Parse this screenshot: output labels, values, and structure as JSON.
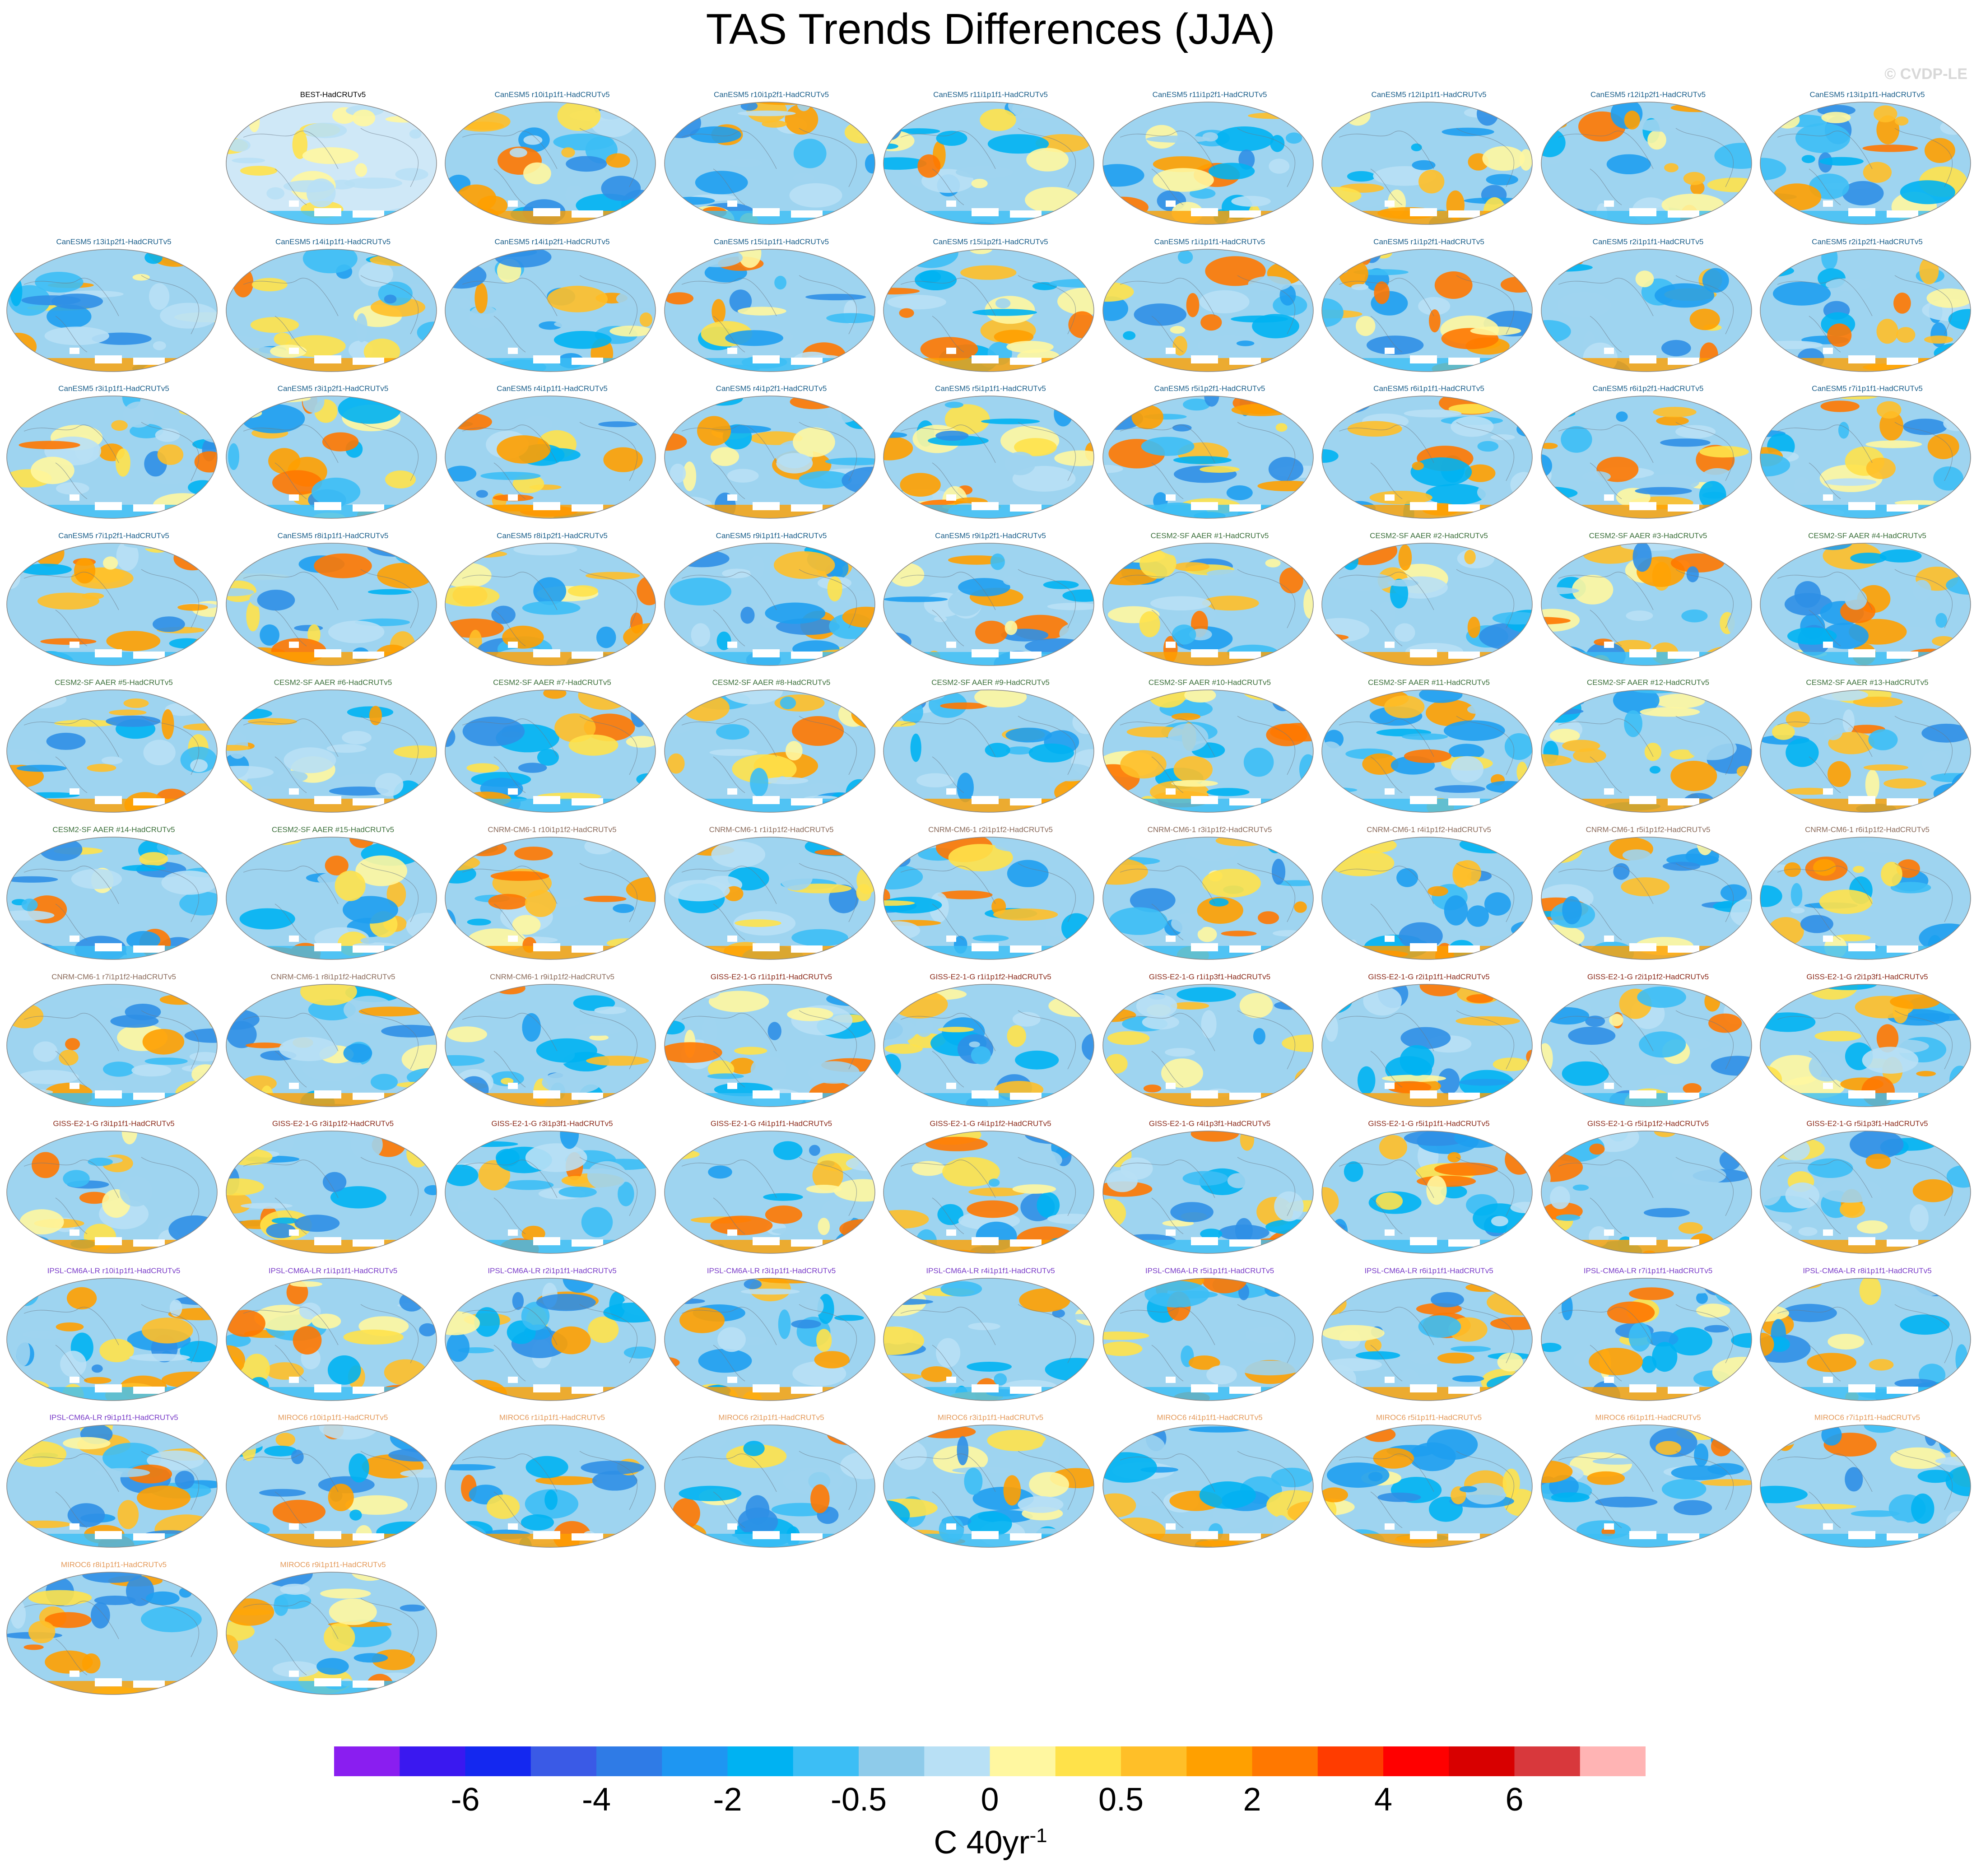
{
  "title": "TAS Trends Differences (JJA)",
  "watermark": "© CVDP-LE",
  "colors": {
    "reference_title": "#000000",
    "CanESM5": "#1a5e8a",
    "CESM2-SF AAER": "#3b6f3a",
    "CNRM-CM6-1": "#8a6a5a",
    "GISS-E2-1-G": "#8b2a1a",
    "IPSL-CM6A-LR": "#7a3cc8",
    "MIROC6": "#e49a5a"
  },
  "panels": [
    {
      "label": "BEST-HadCRUTv5",
      "model": "reference"
    },
    {
      "label": "CanESM5 r10i1p1f1-HadCRUTv5",
      "model": "CanESM5"
    },
    {
      "label": "CanESM5 r10i1p2f1-HadCRUTv5",
      "model": "CanESM5"
    },
    {
      "label": "CanESM5 r11i1p1f1-HadCRUTv5",
      "model": "CanESM5"
    },
    {
      "label": "CanESM5 r11i1p2f1-HadCRUTv5",
      "model": "CanESM5"
    },
    {
      "label": "CanESM5 r12i1p1f1-HadCRUTv5",
      "model": "CanESM5"
    },
    {
      "label": "CanESM5 r12i1p2f1-HadCRUTv5",
      "model": "CanESM5"
    },
    {
      "label": "CanESM5 r13i1p1f1-HadCRUTv5",
      "model": "CanESM5"
    },
    {
      "label": "CanESM5 r13i1p2f1-HadCRUTv5",
      "model": "CanESM5"
    },
    {
      "label": "CanESM5 r14i1p1f1-HadCRUTv5",
      "model": "CanESM5"
    },
    {
      "label": "CanESM5 r14i1p2f1-HadCRUTv5",
      "model": "CanESM5"
    },
    {
      "label": "CanESM5 r15i1p1f1-HadCRUTv5",
      "model": "CanESM5"
    },
    {
      "label": "CanESM5 r15i1p2f1-HadCRUTv5",
      "model": "CanESM5"
    },
    {
      "label": "CanESM5 r1i1p1f1-HadCRUTv5",
      "model": "CanESM5"
    },
    {
      "label": "CanESM5 r1i1p2f1-HadCRUTv5",
      "model": "CanESM5"
    },
    {
      "label": "CanESM5 r2i1p1f1-HadCRUTv5",
      "model": "CanESM5"
    },
    {
      "label": "CanESM5 r2i1p2f1-HadCRUTv5",
      "model": "CanESM5"
    },
    {
      "label": "CanESM5 r3i1p1f1-HadCRUTv5",
      "model": "CanESM5"
    },
    {
      "label": "CanESM5 r3i1p2f1-HadCRUTv5",
      "model": "CanESM5"
    },
    {
      "label": "CanESM5 r4i1p1f1-HadCRUTv5",
      "model": "CanESM5"
    },
    {
      "label": "CanESM5 r4i1p2f1-HadCRUTv5",
      "model": "CanESM5"
    },
    {
      "label": "CanESM5 r5i1p1f1-HadCRUTv5",
      "model": "CanESM5"
    },
    {
      "label": "CanESM5 r5i1p2f1-HadCRUTv5",
      "model": "CanESM5"
    },
    {
      "label": "CanESM5 r6i1p1f1-HadCRUTv5",
      "model": "CanESM5"
    },
    {
      "label": "CanESM5 r6i1p2f1-HadCRUTv5",
      "model": "CanESM5"
    },
    {
      "label": "CanESM5 r7i1p1f1-HadCRUTv5",
      "model": "CanESM5"
    },
    {
      "label": "CanESM5 r7i1p2f1-HadCRUTv5",
      "model": "CanESM5"
    },
    {
      "label": "CanESM5 r8i1p1f1-HadCRUTv5",
      "model": "CanESM5"
    },
    {
      "label": "CanESM5 r8i1p2f1-HadCRUTv5",
      "model": "CanESM5"
    },
    {
      "label": "CanESM5 r9i1p1f1-HadCRUTv5",
      "model": "CanESM5"
    },
    {
      "label": "CanESM5 r9i1p2f1-HadCRUTv5",
      "model": "CanESM5"
    },
    {
      "label": "CESM2-SF AAER #1-HadCRUTv5",
      "model": "CESM2-SF AAER"
    },
    {
      "label": "CESM2-SF AAER #2-HadCRUTv5",
      "model": "CESM2-SF AAER"
    },
    {
      "label": "CESM2-SF AAER #3-HadCRUTv5",
      "model": "CESM2-SF AAER"
    },
    {
      "label": "CESM2-SF AAER #4-HadCRUTv5",
      "model": "CESM2-SF AAER"
    },
    {
      "label": "CESM2-SF AAER #5-HadCRUTv5",
      "model": "CESM2-SF AAER"
    },
    {
      "label": "CESM2-SF AAER #6-HadCRUTv5",
      "model": "CESM2-SF AAER"
    },
    {
      "label": "CESM2-SF AAER #7-HadCRUTv5",
      "model": "CESM2-SF AAER"
    },
    {
      "label": "CESM2-SF AAER #8-HadCRUTv5",
      "model": "CESM2-SF AAER"
    },
    {
      "label": "CESM2-SF AAER #9-HadCRUTv5",
      "model": "CESM2-SF AAER"
    },
    {
      "label": "CESM2-SF AAER #10-HadCRUTv5",
      "model": "CESM2-SF AAER"
    },
    {
      "label": "CESM2-SF AAER #11-HadCRUTv5",
      "model": "CESM2-SF AAER"
    },
    {
      "label": "CESM2-SF AAER #12-HadCRUTv5",
      "model": "CESM2-SF AAER"
    },
    {
      "label": "CESM2-SF AAER #13-HadCRUTv5",
      "model": "CESM2-SF AAER"
    },
    {
      "label": "CESM2-SF AAER #14-HadCRUTv5",
      "model": "CESM2-SF AAER"
    },
    {
      "label": "CESM2-SF AAER #15-HadCRUTv5",
      "model": "CESM2-SF AAER"
    },
    {
      "label": "CNRM-CM6-1 r10i1p1f2-HadCRUTv5",
      "model": "CNRM-CM6-1"
    },
    {
      "label": "CNRM-CM6-1 r1i1p1f2-HadCRUTv5",
      "model": "CNRM-CM6-1"
    },
    {
      "label": "CNRM-CM6-1 r2i1p1f2-HadCRUTv5",
      "model": "CNRM-CM6-1"
    },
    {
      "label": "CNRM-CM6-1 r3i1p1f2-HadCRUTv5",
      "model": "CNRM-CM6-1"
    },
    {
      "label": "CNRM-CM6-1 r4i1p1f2-HadCRUTv5",
      "model": "CNRM-CM6-1"
    },
    {
      "label": "CNRM-CM6-1 r5i1p1f2-HadCRUTv5",
      "model": "CNRM-CM6-1"
    },
    {
      "label": "CNRM-CM6-1 r6i1p1f2-HadCRUTv5",
      "model": "CNRM-CM6-1"
    },
    {
      "label": "CNRM-CM6-1 r7i1p1f2-HadCRUTv5",
      "model": "CNRM-CM6-1"
    },
    {
      "label": "CNRM-CM6-1 r8i1p1f2-HadCRUTv5",
      "model": "CNRM-CM6-1"
    },
    {
      "label": "CNRM-CM6-1 r9i1p1f2-HadCRUTv5",
      "model": "CNRM-CM6-1"
    },
    {
      "label": "GISS-E2-1-G r1i1p1f1-HadCRUTv5",
      "model": "GISS-E2-1-G"
    },
    {
      "label": "GISS-E2-1-G r1i1p1f2-HadCRUTv5",
      "model": "GISS-E2-1-G"
    },
    {
      "label": "GISS-E2-1-G r1i1p3f1-HadCRUTv5",
      "model": "GISS-E2-1-G"
    },
    {
      "label": "GISS-E2-1-G r2i1p1f1-HadCRUTv5",
      "model": "GISS-E2-1-G"
    },
    {
      "label": "GISS-E2-1-G r2i1p1f2-HadCRUTv5",
      "model": "GISS-E2-1-G"
    },
    {
      "label": "GISS-E2-1-G r2i1p3f1-HadCRUTv5",
      "model": "GISS-E2-1-G"
    },
    {
      "label": "GISS-E2-1-G r3i1p1f1-HadCRUTv5",
      "model": "GISS-E2-1-G"
    },
    {
      "label": "GISS-E2-1-G r3i1p1f2-HadCRUTv5",
      "model": "GISS-E2-1-G"
    },
    {
      "label": "GISS-E2-1-G r3i1p3f1-HadCRUTv5",
      "model": "GISS-E2-1-G"
    },
    {
      "label": "GISS-E2-1-G r4i1p1f1-HadCRUTv5",
      "model": "GISS-E2-1-G"
    },
    {
      "label": "GISS-E2-1-G r4i1p1f2-HadCRUTv5",
      "model": "GISS-E2-1-G"
    },
    {
      "label": "GISS-E2-1-G r4i1p3f1-HadCRUTv5",
      "model": "GISS-E2-1-G"
    },
    {
      "label": "GISS-E2-1-G r5i1p1f1-HadCRUTv5",
      "model": "GISS-E2-1-G"
    },
    {
      "label": "GISS-E2-1-G r5i1p1f2-HadCRUTv5",
      "model": "GISS-E2-1-G"
    },
    {
      "label": "GISS-E2-1-G r5i1p3f1-HadCRUTv5",
      "model": "GISS-E2-1-G"
    },
    {
      "label": "IPSL-CM6A-LR r10i1p1f1-HadCRUTv5",
      "model": "IPSL-CM6A-LR"
    },
    {
      "label": "IPSL-CM6A-LR r1i1p1f1-HadCRUTv5",
      "model": "IPSL-CM6A-LR"
    },
    {
      "label": "IPSL-CM6A-LR r2i1p1f1-HadCRUTv5",
      "model": "IPSL-CM6A-LR"
    },
    {
      "label": "IPSL-CM6A-LR r3i1p1f1-HadCRUTv5",
      "model": "IPSL-CM6A-LR"
    },
    {
      "label": "IPSL-CM6A-LR r4i1p1f1-HadCRUTv5",
      "model": "IPSL-CM6A-LR"
    },
    {
      "label": "IPSL-CM6A-LR r5i1p1f1-HadCRUTv5",
      "model": "IPSL-CM6A-LR"
    },
    {
      "label": "IPSL-CM6A-LR r6i1p1f1-HadCRUTv5",
      "model": "IPSL-CM6A-LR"
    },
    {
      "label": "IPSL-CM6A-LR r7i1p1f1-HadCRUTv5",
      "model": "IPSL-CM6A-LR"
    },
    {
      "label": "IPSL-CM6A-LR r8i1p1f1-HadCRUTv5",
      "model": "IPSL-CM6A-LR"
    },
    {
      "label": "IPSL-CM6A-LR r9i1p1f1-HadCRUTv5",
      "model": "IPSL-CM6A-LR"
    },
    {
      "label": "MIROC6 r10i1p1f1-HadCRUTv5",
      "model": "MIROC6"
    },
    {
      "label": "MIROC6 r1i1p1f1-HadCRUTv5",
      "model": "MIROC6"
    },
    {
      "label": "MIROC6 r2i1p1f1-HadCRUTv5",
      "model": "MIROC6"
    },
    {
      "label": "MIROC6 r3i1p1f1-HadCRUTv5",
      "model": "MIROC6"
    },
    {
      "label": "MIROC6 r4i1p1f1-HadCRUTv5",
      "model": "MIROC6"
    },
    {
      "label": "MIROC6 r5i1p1f1-HadCRUTv5",
      "model": "MIROC6"
    },
    {
      "label": "MIROC6 r6i1p1f1-HadCRUTv5",
      "model": "MIROC6"
    },
    {
      "label": "MIROC6 r7i1p1f1-HadCRUTv5",
      "model": "MIROC6"
    },
    {
      "label": "MIROC6 r8i1p1f1-HadCRUTv5",
      "model": "MIROC6"
    },
    {
      "label": "MIROC6 r9i1p1f1-HadCRUTv5",
      "model": "MIROC6"
    }
  ],
  "colorbar": {
    "colors": [
      "#8a1ef0",
      "#3a18f0",
      "#1428f0",
      "#3a5ae6",
      "#2f7be6",
      "#1e96f2",
      "#00b2f2",
      "#3cbef5",
      "#8ecbea",
      "#b8e0f5",
      "#fff7a0",
      "#ffe24a",
      "#ffbf28",
      "#ffa000",
      "#ff7800",
      "#ff3c00",
      "#ff0000",
      "#d80000",
      "#d8383c",
      "#ffb4b4"
    ],
    "labels": [
      "-6",
      "-4",
      "-2",
      "-0.5",
      "0",
      "0.5",
      "2",
      "4",
      "6"
    ],
    "units_base": "C 40yr",
    "units_exp": "-1"
  }
}
